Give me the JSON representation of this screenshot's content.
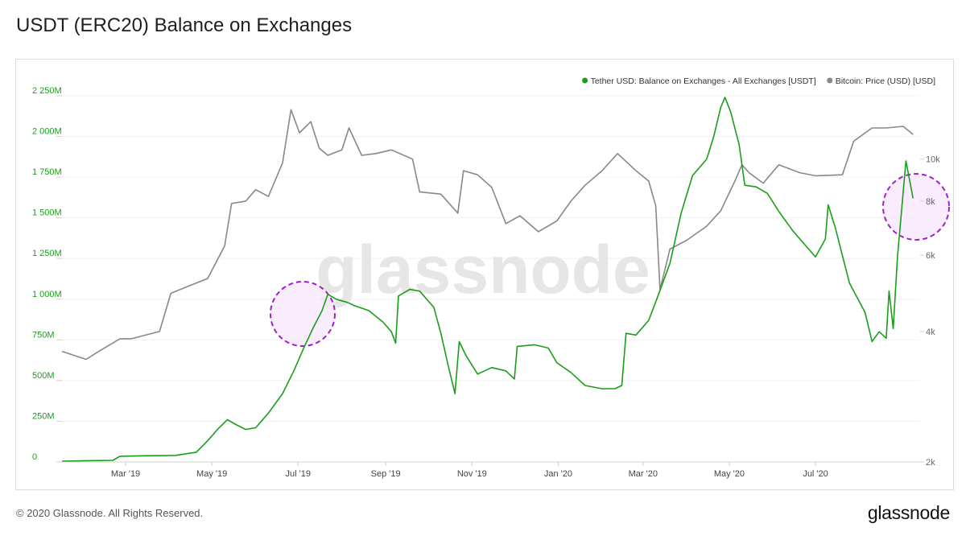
{
  "title": "USDT (ERC20) Balance on Exchanges",
  "footer": {
    "copyright": "© 2020 Glassnode. All Rights Reserved.",
    "logo": "glassnode"
  },
  "watermark": "glassnode",
  "chart_data": {
    "type": "line",
    "legend": {
      "placement": "top-right"
    },
    "x_ticks": [
      "Mar '19",
      "May '19",
      "Jul '19",
      "Sep '19",
      "Nov '19",
      "Jan '20",
      "Mar '20",
      "May '20",
      "Jul '20"
    ],
    "y_left": {
      "ticks": [
        "0",
        "250M",
        "500M",
        "750M",
        "1 000M",
        "1 250M",
        "1 500M",
        "1 750M",
        "2 000M",
        "2 250M"
      ],
      "range": [
        0,
        2250
      ],
      "color": "#1a9e1a"
    },
    "y_right": {
      "ticks": [
        "2k",
        "4k",
        "6k",
        "8k",
        "10k"
      ],
      "scale": "log",
      "range": [
        2000,
        14000
      ],
      "color": "#888888"
    },
    "series": [
      {
        "name": "Tether USD: Balance on Exchanges - All Exchanges [USDT]",
        "axis": "left",
        "color": "#1a9e1a",
        "points": [
          [
            "2019-01-15",
            5
          ],
          [
            "2019-02-01",
            8
          ],
          [
            "2019-02-20",
            10
          ],
          [
            "2019-02-25",
            35
          ],
          [
            "2019-03-15",
            38
          ],
          [
            "2019-04-05",
            40
          ],
          [
            "2019-04-20",
            60
          ],
          [
            "2019-04-28",
            130
          ],
          [
            "2019-05-05",
            200
          ],
          [
            "2019-05-12",
            260
          ],
          [
            "2019-05-18",
            230
          ],
          [
            "2019-05-25",
            200
          ],
          [
            "2019-06-01",
            210
          ],
          [
            "2019-06-10",
            300
          ],
          [
            "2019-06-20",
            420
          ],
          [
            "2019-06-28",
            560
          ],
          [
            "2019-07-05",
            700
          ],
          [
            "2019-07-12",
            830
          ],
          [
            "2019-07-18",
            930
          ],
          [
            "2019-07-22",
            1030
          ],
          [
            "2019-07-28",
            1000
          ],
          [
            "2019-08-05",
            980
          ],
          [
            "2019-08-10",
            960
          ],
          [
            "2019-08-20",
            930
          ],
          [
            "2019-08-30",
            860
          ],
          [
            "2019-09-05",
            800
          ],
          [
            "2019-09-08",
            730
          ],
          [
            "2019-09-10",
            1020
          ],
          [
            "2019-09-18",
            1060
          ],
          [
            "2019-09-25",
            1050
          ],
          [
            "2019-10-05",
            950
          ],
          [
            "2019-10-10",
            790
          ],
          [
            "2019-10-15",
            600
          ],
          [
            "2019-10-20",
            420
          ],
          [
            "2019-10-23",
            740
          ],
          [
            "2019-10-28",
            650
          ],
          [
            "2019-11-05",
            540
          ],
          [
            "2019-11-15",
            580
          ],
          [
            "2019-11-25",
            560
          ],
          [
            "2019-12-01",
            510
          ],
          [
            "2019-12-03",
            710
          ],
          [
            "2019-12-15",
            720
          ],
          [
            "2019-12-25",
            700
          ],
          [
            "2019-12-31",
            610
          ],
          [
            "2020-01-10",
            550
          ],
          [
            "2020-01-20",
            470
          ],
          [
            "2020-02-01",
            450
          ],
          [
            "2020-02-10",
            450
          ],
          [
            "2020-02-15",
            470
          ],
          [
            "2020-02-18",
            790
          ],
          [
            "2020-02-25",
            780
          ],
          [
            "2020-03-05",
            870
          ],
          [
            "2020-03-12",
            1030
          ],
          [
            "2020-03-20",
            1220
          ],
          [
            "2020-03-28",
            1530
          ],
          [
            "2020-04-05",
            1760
          ],
          [
            "2020-04-15",
            1860
          ],
          [
            "2020-04-20",
            2000
          ],
          [
            "2020-04-25",
            2180
          ],
          [
            "2020-04-28",
            2240
          ],
          [
            "2020-05-02",
            2150
          ],
          [
            "2020-05-08",
            1950
          ],
          [
            "2020-05-12",
            1700
          ],
          [
            "2020-05-20",
            1690
          ],
          [
            "2020-05-28",
            1650
          ],
          [
            "2020-06-05",
            1540
          ],
          [
            "2020-06-15",
            1420
          ],
          [
            "2020-06-25",
            1320
          ],
          [
            "2020-07-01",
            1260
          ],
          [
            "2020-07-08",
            1370
          ],
          [
            "2020-07-10",
            1580
          ],
          [
            "2020-07-15",
            1440
          ],
          [
            "2020-07-25",
            1100
          ],
          [
            "2020-08-05",
            920
          ],
          [
            "2020-08-10",
            740
          ],
          [
            "2020-08-15",
            800
          ],
          [
            "2020-08-20",
            760
          ],
          [
            "2020-08-22",
            1050
          ],
          [
            "2020-08-25",
            820
          ],
          [
            "2020-08-28",
            1260
          ],
          [
            "2020-09-03",
            1850
          ],
          [
            "2020-09-08",
            1620
          ]
        ]
      },
      {
        "name": "Bitcoin: Price (USD) [USD]",
        "axis": "right",
        "color": "#888888",
        "points": [
          [
            "2019-01-15",
            3600
          ],
          [
            "2019-02-01",
            3450
          ],
          [
            "2019-02-10",
            3600
          ],
          [
            "2019-02-25",
            3850
          ],
          [
            "2019-03-05",
            3850
          ],
          [
            "2019-03-25",
            4000
          ],
          [
            "2019-04-02",
            4900
          ],
          [
            "2019-04-15",
            5100
          ],
          [
            "2019-04-28",
            5300
          ],
          [
            "2019-05-10",
            6300
          ],
          [
            "2019-05-15",
            7900
          ],
          [
            "2019-05-25",
            8000
          ],
          [
            "2019-06-01",
            8500
          ],
          [
            "2019-06-10",
            8200
          ],
          [
            "2019-06-20",
            9800
          ],
          [
            "2019-06-26",
            13000
          ],
          [
            "2019-07-02",
            11500
          ],
          [
            "2019-07-10",
            12200
          ],
          [
            "2019-07-16",
            10600
          ],
          [
            "2019-07-22",
            10200
          ],
          [
            "2019-08-01",
            10500
          ],
          [
            "2019-08-06",
            11800
          ],
          [
            "2019-08-15",
            10200
          ],
          [
            "2019-08-25",
            10300
          ],
          [
            "2019-09-05",
            10500
          ],
          [
            "2019-09-20",
            10000
          ],
          [
            "2019-09-25",
            8400
          ],
          [
            "2019-10-10",
            8300
          ],
          [
            "2019-10-22",
            7500
          ],
          [
            "2019-10-26",
            9400
          ],
          [
            "2019-11-05",
            9200
          ],
          [
            "2019-11-15",
            8600
          ],
          [
            "2019-11-25",
            7100
          ],
          [
            "2019-12-05",
            7400
          ],
          [
            "2019-12-18",
            6800
          ],
          [
            "2019-12-31",
            7200
          ],
          [
            "2020-01-10",
            8000
          ],
          [
            "2020-01-20",
            8700
          ],
          [
            "2020-02-01",
            9400
          ],
          [
            "2020-02-12",
            10300
          ],
          [
            "2020-02-25",
            9400
          ],
          [
            "2020-03-05",
            8900
          ],
          [
            "2020-03-10",
            7800
          ],
          [
            "2020-03-13",
            5000
          ],
          [
            "2020-03-20",
            6200
          ],
          [
            "2020-04-01",
            6500
          ],
          [
            "2020-04-15",
            7000
          ],
          [
            "2020-04-25",
            7600
          ],
          [
            "2020-05-05",
            8900
          ],
          [
            "2020-05-10",
            9700
          ],
          [
            "2020-05-15",
            9300
          ],
          [
            "2020-05-25",
            8800
          ],
          [
            "2020-06-05",
            9700
          ],
          [
            "2020-06-20",
            9300
          ],
          [
            "2020-07-01",
            9150
          ],
          [
            "2020-07-20",
            9200
          ],
          [
            "2020-07-28",
            11000
          ],
          [
            "2020-08-10",
            11800
          ],
          [
            "2020-08-20",
            11800
          ],
          [
            "2020-09-01",
            11900
          ],
          [
            "2020-09-08",
            11400
          ]
        ]
      }
    ],
    "annotations": [
      "highlight-circle-jul-2019",
      "highlight-circle-sep-2020"
    ]
  }
}
